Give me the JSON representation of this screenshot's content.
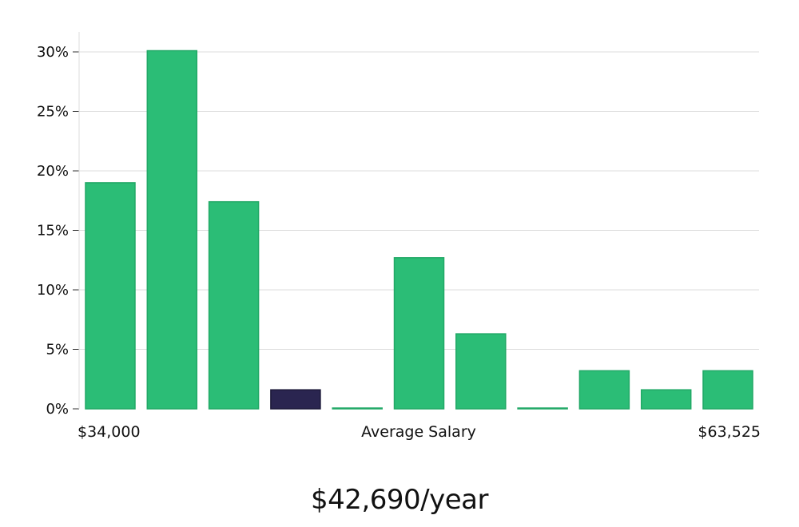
{
  "chart_data": {
    "type": "bar",
    "title": "",
    "xlabel": "Average Salary",
    "ylabel": "",
    "x_min_label": "$34,000",
    "x_max_label": "$63,525",
    "ylim": [
      0,
      30
    ],
    "yticks": [
      0,
      5,
      10,
      15,
      20,
      25,
      30
    ],
    "ytick_labels": [
      "0%",
      "5%",
      "10%",
      "15%",
      "20%",
      "25%",
      "30%"
    ],
    "values": [
      19.0,
      30.1,
      17.4,
      1.6,
      0.05,
      12.7,
      6.3,
      0.05,
      3.2,
      1.6,
      3.2
    ],
    "highlight_index": 3,
    "grid": true,
    "colors": {
      "bar": "#2bbd76",
      "bar_edge": "#21a866",
      "highlight": "#2a2550",
      "grid": "#dddddd"
    }
  },
  "salary_label": "$42,690/year"
}
